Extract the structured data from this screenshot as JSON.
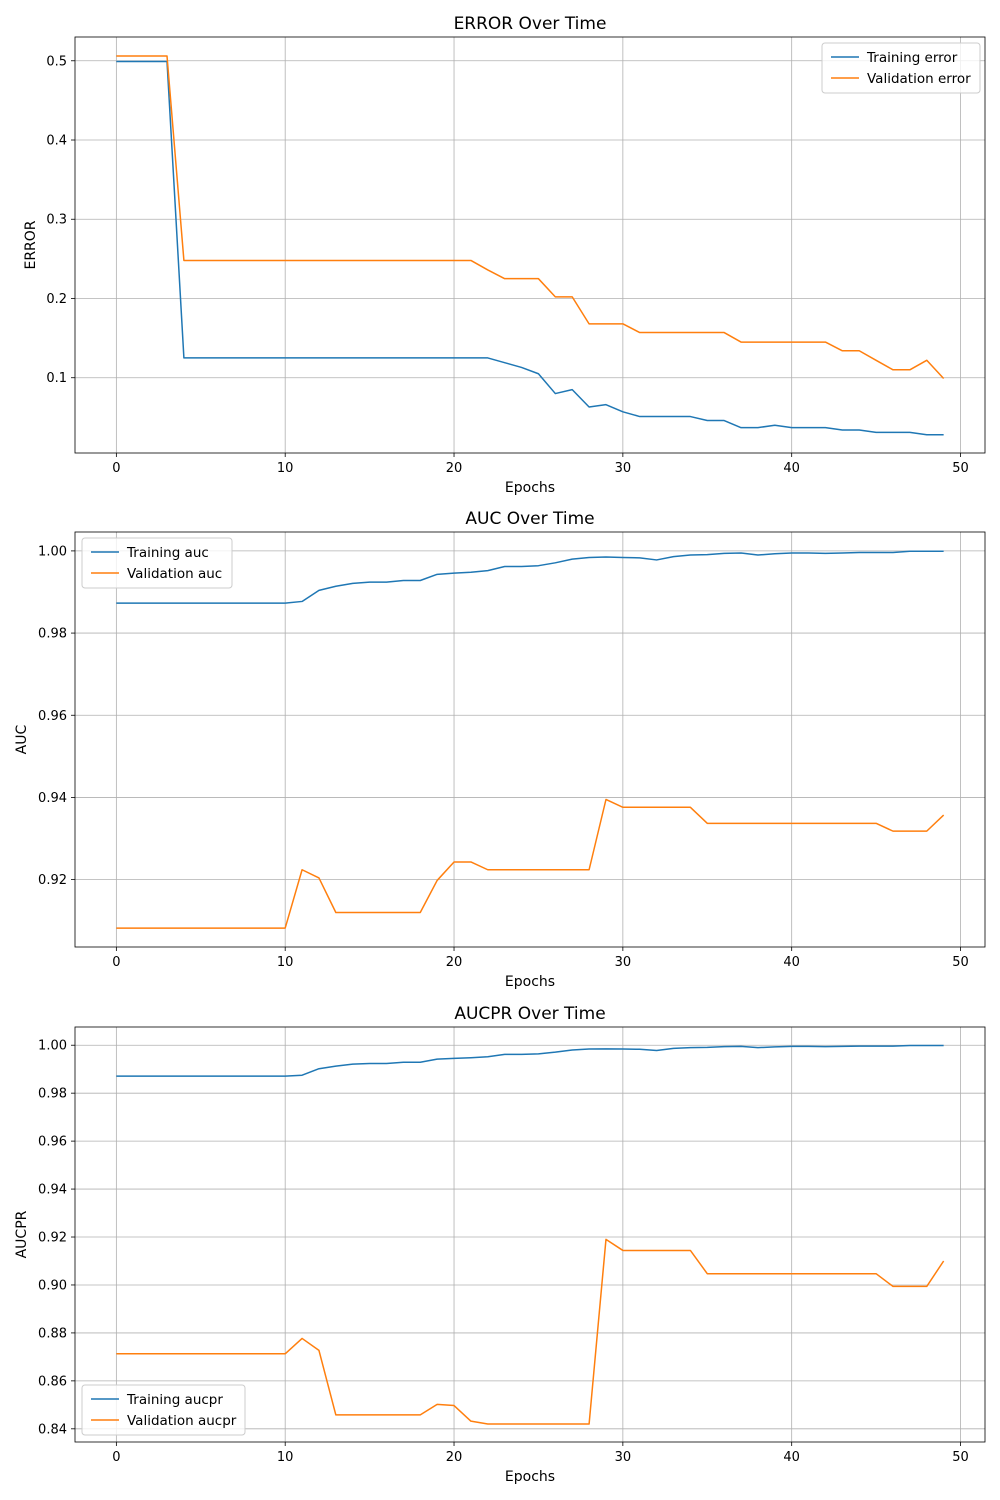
{
  "chart_data": [
    {
      "type": "line",
      "title": "ERROR Over Time",
      "xlabel": "Epochs",
      "ylabel": "ERROR",
      "xlim": [
        -2.45,
        51.45
      ],
      "ylim": [
        0.005,
        0.53
      ],
      "xticks": [
        0,
        10,
        20,
        30,
        40,
        50
      ],
      "yticks": [
        0.1,
        0.2,
        0.3,
        0.4,
        0.5
      ],
      "ytick_decimals": 1,
      "grid": true,
      "legend_position": "top-right",
      "series": [
        {
          "name": "Training error",
          "color": "#1f77b4",
          "x": [
            0,
            1,
            2,
            3,
            4,
            5,
            6,
            7,
            8,
            9,
            10,
            11,
            12,
            13,
            14,
            15,
            16,
            17,
            18,
            19,
            20,
            21,
            22,
            23,
            24,
            25,
            26,
            27,
            28,
            29,
            30,
            31,
            32,
            33,
            34,
            35,
            36,
            37,
            38,
            39,
            40,
            41,
            42,
            43,
            44,
            45,
            46,
            47,
            48,
            49
          ],
          "values": [
            0.499,
            0.499,
            0.499,
            0.499,
            0.125,
            0.125,
            0.125,
            0.125,
            0.125,
            0.125,
            0.125,
            0.125,
            0.125,
            0.125,
            0.125,
            0.125,
            0.125,
            0.125,
            0.125,
            0.125,
            0.125,
            0.125,
            0.125,
            0.119,
            0.113,
            0.105,
            0.08,
            0.085,
            0.063,
            0.066,
            0.057,
            0.051,
            0.051,
            0.051,
            0.051,
            0.046,
            0.046,
            0.037,
            0.037,
            0.04,
            0.037,
            0.037,
            0.037,
            0.034,
            0.034,
            0.031,
            0.031,
            0.031,
            0.028,
            0.028
          ]
        },
        {
          "name": "Validation error",
          "color": "#ff7f0e",
          "x": [
            0,
            1,
            2,
            3,
            4,
            5,
            6,
            7,
            8,
            9,
            10,
            11,
            12,
            13,
            14,
            15,
            16,
            17,
            18,
            19,
            20,
            21,
            22,
            23,
            24,
            25,
            26,
            27,
            28,
            29,
            30,
            31,
            32,
            33,
            34,
            35,
            36,
            37,
            38,
            39,
            40,
            41,
            42,
            43,
            44,
            45,
            46,
            47,
            48,
            49
          ],
          "values": [
            0.506,
            0.506,
            0.506,
            0.506,
            0.248,
            0.248,
            0.248,
            0.248,
            0.248,
            0.248,
            0.248,
            0.248,
            0.248,
            0.248,
            0.248,
            0.248,
            0.248,
            0.248,
            0.248,
            0.248,
            0.248,
            0.248,
            0.236,
            0.225,
            0.225,
            0.225,
            0.202,
            0.202,
            0.168,
            0.168,
            0.168,
            0.157,
            0.157,
            0.157,
            0.157,
            0.157,
            0.157,
            0.145,
            0.145,
            0.145,
            0.145,
            0.145,
            0.145,
            0.134,
            0.134,
            0.122,
            0.11,
            0.11,
            0.122,
            0.099
          ]
        }
      ]
    },
    {
      "type": "line",
      "title": "AUC Over Time",
      "xlabel": "Epochs",
      "ylabel": "AUC",
      "xlim": [
        -2.45,
        51.45
      ],
      "ylim": [
        0.9036,
        1.0046
      ],
      "xticks": [
        0,
        10,
        20,
        30,
        40,
        50
      ],
      "yticks": [
        0.92,
        0.94,
        0.96,
        0.98,
        1.0
      ],
      "ytick_decimals": 2,
      "grid": true,
      "legend_position": "top-left",
      "series": [
        {
          "name": "Training auc",
          "color": "#1f77b4",
          "x": [
            0,
            1,
            2,
            3,
            4,
            5,
            6,
            7,
            8,
            9,
            10,
            11,
            12,
            13,
            14,
            15,
            16,
            17,
            18,
            19,
            20,
            21,
            22,
            23,
            24,
            25,
            26,
            27,
            28,
            29,
            30,
            31,
            32,
            33,
            34,
            35,
            36,
            37,
            38,
            39,
            40,
            41,
            42,
            43,
            44,
            45,
            46,
            47,
            48,
            49
          ],
          "values": [
            0.9873,
            0.9873,
            0.9873,
            0.9873,
            0.9873,
            0.9873,
            0.9873,
            0.9873,
            0.9873,
            0.9873,
            0.9873,
            0.9877,
            0.9904,
            0.9914,
            0.9921,
            0.9924,
            0.9924,
            0.9928,
            0.9928,
            0.9943,
            0.9946,
            0.9948,
            0.9952,
            0.9962,
            0.9962,
            0.9964,
            0.9971,
            0.998,
            0.9984,
            0.9985,
            0.9984,
            0.9983,
            0.9978,
            0.9986,
            0.999,
            0.9991,
            0.9994,
            0.9995,
            0.999,
            0.9993,
            0.9995,
            0.9995,
            0.9994,
            0.9995,
            0.9996,
            0.9996,
            0.9996,
            0.9999,
            0.9999,
            0.9999
          ]
        },
        {
          "name": "Validation auc",
          "color": "#ff7f0e",
          "x": [
            0,
            1,
            2,
            3,
            4,
            5,
            6,
            7,
            8,
            9,
            10,
            11,
            12,
            13,
            14,
            15,
            16,
            17,
            18,
            19,
            20,
            21,
            22,
            23,
            24,
            25,
            26,
            27,
            28,
            29,
            30,
            31,
            32,
            33,
            34,
            35,
            36,
            37,
            38,
            39,
            40,
            41,
            42,
            43,
            44,
            45,
            46,
            47,
            48,
            49
          ],
          "values": [
            0.9082,
            0.9082,
            0.9082,
            0.9082,
            0.9082,
            0.9082,
            0.9082,
            0.9082,
            0.9082,
            0.9082,
            0.9082,
            0.9224,
            0.9204,
            0.912,
            0.912,
            0.912,
            0.912,
            0.912,
            0.912,
            0.9198,
            0.9243,
            0.9243,
            0.9224,
            0.9224,
            0.9224,
            0.9224,
            0.9224,
            0.9224,
            0.9224,
            0.9395,
            0.9376,
            0.9376,
            0.9376,
            0.9376,
            0.9376,
            0.9337,
            0.9337,
            0.9337,
            0.9337,
            0.9337,
            0.9337,
            0.9337,
            0.9337,
            0.9337,
            0.9337,
            0.9337,
            0.9318,
            0.9318,
            0.9318,
            0.9357
          ]
        }
      ]
    },
    {
      "type": "line",
      "title": "AUCPR Over Time",
      "xlabel": "Epochs",
      "ylabel": "AUCPR",
      "xlim": [
        -2.45,
        51.45
      ],
      "ylim": [
        0.8345,
        1.0076
      ],
      "xticks": [
        0,
        10,
        20,
        30,
        40,
        50
      ],
      "yticks": [
        0.84,
        0.86,
        0.88,
        0.9,
        0.92,
        0.94,
        0.96,
        0.98,
        1.0
      ],
      "ytick_decimals": 2,
      "grid": true,
      "legend_position": "bottom-left",
      "series": [
        {
          "name": "Training aucpr",
          "color": "#1f77b4",
          "x": [
            0,
            1,
            2,
            3,
            4,
            5,
            6,
            7,
            8,
            9,
            10,
            11,
            12,
            13,
            14,
            15,
            16,
            17,
            18,
            19,
            20,
            21,
            22,
            23,
            24,
            25,
            26,
            27,
            28,
            29,
            30,
            31,
            32,
            33,
            34,
            35,
            36,
            37,
            38,
            39,
            40,
            41,
            42,
            43,
            44,
            45,
            46,
            47,
            48,
            49
          ],
          "values": [
            0.9871,
            0.9871,
            0.9871,
            0.9871,
            0.9871,
            0.9871,
            0.9871,
            0.9871,
            0.9871,
            0.9871,
            0.9871,
            0.9875,
            0.9902,
            0.9913,
            0.9921,
            0.9924,
            0.9924,
            0.9929,
            0.9929,
            0.9942,
            0.9945,
            0.9948,
            0.9952,
            0.9962,
            0.9962,
            0.9964,
            0.9971,
            0.998,
            0.9984,
            0.9985,
            0.9984,
            0.9983,
            0.9978,
            0.9987,
            0.999,
            0.9991,
            0.9994,
            0.9995,
            0.999,
            0.9993,
            0.9995,
            0.9995,
            0.9994,
            0.9995,
            0.9996,
            0.9996,
            0.9996,
            0.9999,
            0.9999,
            0.9999
          ]
        },
        {
          "name": "Validation aucpr",
          "color": "#ff7f0e",
          "x": [
            0,
            1,
            2,
            3,
            4,
            5,
            6,
            7,
            8,
            9,
            10,
            11,
            12,
            13,
            14,
            15,
            16,
            17,
            18,
            19,
            20,
            21,
            22,
            23,
            24,
            25,
            26,
            27,
            28,
            29,
            30,
            31,
            32,
            33,
            34,
            35,
            36,
            37,
            38,
            39,
            40,
            41,
            42,
            43,
            44,
            45,
            46,
            47,
            48,
            49
          ],
          "values": [
            0.8713,
            0.8713,
            0.8713,
            0.8713,
            0.8713,
            0.8713,
            0.8713,
            0.8713,
            0.8713,
            0.8713,
            0.8713,
            0.8777,
            0.8727,
            0.8458,
            0.8458,
            0.8458,
            0.8458,
            0.8458,
            0.8458,
            0.8502,
            0.8497,
            0.8432,
            0.842,
            0.842,
            0.842,
            0.842,
            0.842,
            0.842,
            0.842,
            0.919,
            0.9144,
            0.9144,
            0.9144,
            0.9144,
            0.9144,
            0.9047,
            0.9047,
            0.9047,
            0.9047,
            0.9047,
            0.9047,
            0.9047,
            0.9047,
            0.9047,
            0.9047,
            0.9047,
            0.8994,
            0.8994,
            0.8994,
            0.91
          ]
        }
      ]
    }
  ]
}
